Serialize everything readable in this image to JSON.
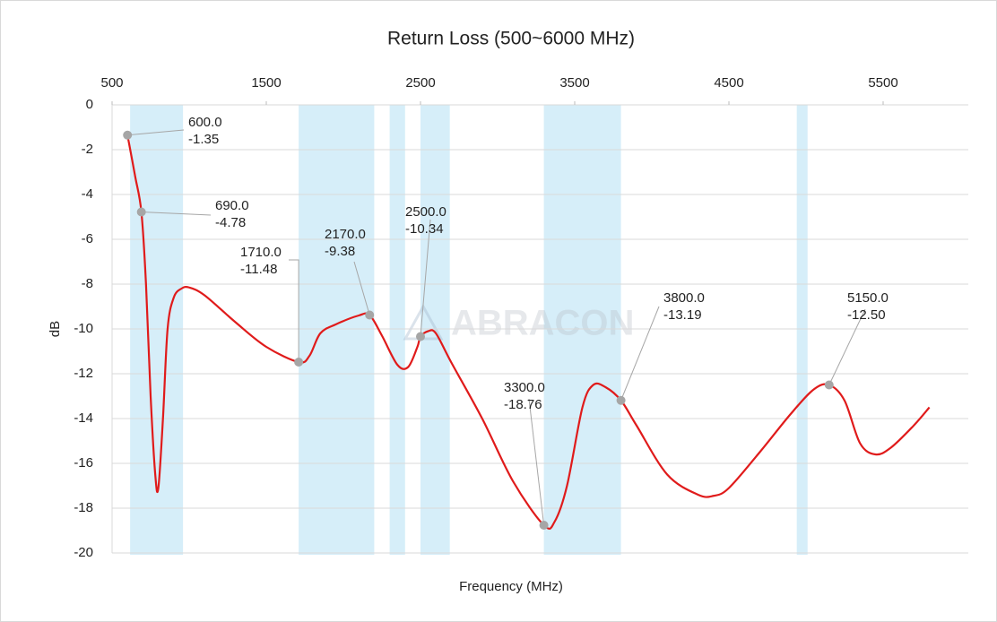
{
  "chart_data": {
    "type": "line",
    "title": "Return Loss (500~6000 MHz)",
    "x_label": "Frequency (MHz)",
    "y_label": "dB",
    "watermark": "ABRACON",
    "xlim": [
      500,
      6000
    ],
    "xticks": [
      500,
      1500,
      2500,
      3500,
      4500,
      5500
    ],
    "ylim": [
      -20,
      0
    ],
    "yticks": [
      0,
      -2,
      -4,
      -6,
      -8,
      -10,
      -12,
      -14,
      -16,
      -18,
      -20
    ],
    "grid": true,
    "bands": [
      [
        617,
        960
      ],
      [
        1710,
        2200
      ],
      [
        2300,
        2400
      ],
      [
        2500,
        2690
      ],
      [
        3300,
        3800
      ],
      [
        4940,
        5010
      ]
    ],
    "band_color": "#d6eef9",
    "series": [
      {
        "color": "#e01b1b",
        "x": [
          600,
          650,
          690,
          720,
          750,
          780,
          800,
          830,
          860,
          900,
          950,
          1000,
          1100,
          1300,
          1500,
          1710,
          1780,
          1850,
          1950,
          2100,
          2170,
          2250,
          2350,
          2420,
          2480,
          2500,
          2550,
          2600,
          2700,
          2900,
          3100,
          3300,
          3370,
          3450,
          3550,
          3620,
          3700,
          3800,
          3900,
          4100,
          4300,
          4400,
          4500,
          4700,
          4900,
          5050,
          5150,
          5250,
          5350,
          5450,
          5550,
          5700,
          5800
        ],
        "values": [
          -1.35,
          -3.2,
          -4.78,
          -8,
          -13,
          -16.5,
          -17.1,
          -14,
          -10,
          -8.6,
          -8.2,
          -8.15,
          -8.5,
          -9.7,
          -10.8,
          -11.48,
          -11.2,
          -10.2,
          -9.8,
          -9.4,
          -9.38,
          -10.3,
          -11.6,
          -11.7,
          -10.8,
          -10.34,
          -10.1,
          -10.2,
          -11.5,
          -14,
          -16.8,
          -18.76,
          -18.6,
          -17,
          -13.5,
          -12.5,
          -12.6,
          -13.19,
          -14.3,
          -16.5,
          -17.4,
          -17.45,
          -17.1,
          -15.5,
          -13.8,
          -12.7,
          -12.5,
          -13.2,
          -15.1,
          -15.6,
          -15.3,
          -14.3,
          -13.5
        ]
      }
    ],
    "annotations": [
      {
        "x": 600,
        "y": -1.35,
        "x_label": "600.0",
        "y_label": "-1.35"
      },
      {
        "x": 690,
        "y": -4.78,
        "x_label": "690.0",
        "y_label": "-4.78"
      },
      {
        "x": 1710,
        "y": -11.48,
        "x_label": "1710.0",
        "y_label": "-11.48"
      },
      {
        "x": 2170,
        "y": -9.38,
        "x_label": "2170.0",
        "y_label": "-9.38"
      },
      {
        "x": 2500,
        "y": -10.34,
        "x_label": "2500.0",
        "y_label": "-10.34"
      },
      {
        "x": 3300,
        "y": -18.76,
        "x_label": "3300.0",
        "y_label": "-18.76"
      },
      {
        "x": 3800,
        "y": -13.19,
        "x_label": "3800.0",
        "y_label": "-13.19"
      },
      {
        "x": 5150,
        "y": -12.5,
        "x_label": "5150.0",
        "y_label": "-12.50"
      }
    ]
  }
}
